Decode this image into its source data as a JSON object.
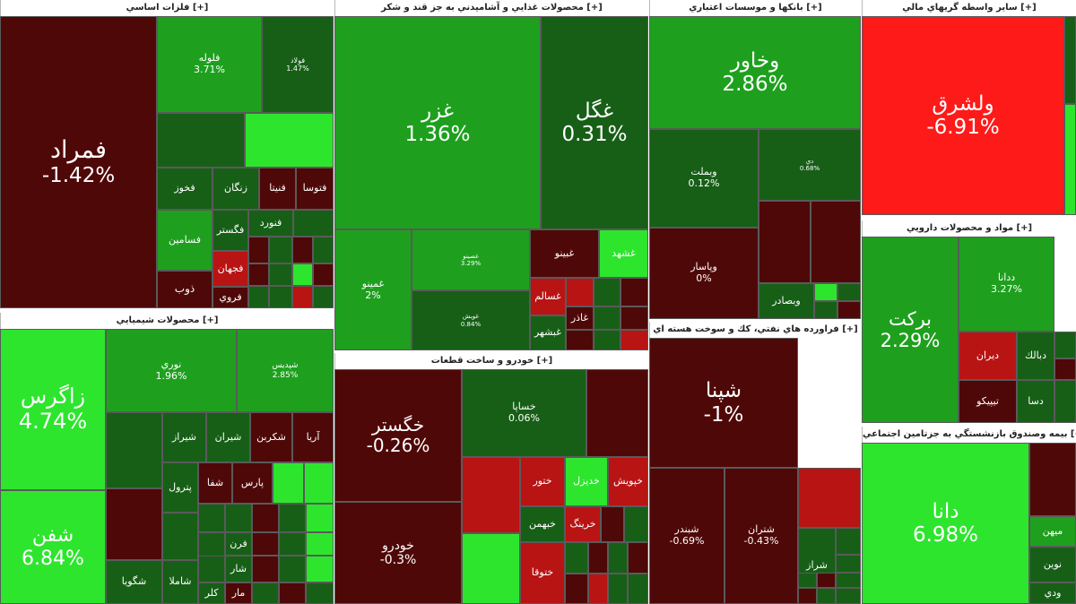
{
  "colors": {
    "pos_strong": "#2ee52e",
    "pos_mid": "#1ea01e",
    "pos_dark": "#175f17",
    "neg_strong": "#ff1a1a",
    "neg_mid": "#b81414",
    "neg_dark": "#4f0808"
  },
  "chart_data": {
    "type": "treemap",
    "title": "",
    "sectors": [
      {
        "name": "فلزات اساسي [+]",
        "items": [
          {
            "symbol": "فمراد",
            "change": "-1.42%"
          },
          {
            "symbol": "فلوله",
            "change": "3.71%"
          },
          {
            "symbol": "فولاد",
            "change": "1.47%"
          },
          {
            "symbol": "فخوز",
            "change": ""
          },
          {
            "symbol": "زنگان",
            "change": ""
          },
          {
            "symbol": "فنيتا",
            "change": ""
          },
          {
            "symbol": "فتوسا",
            "change": ""
          },
          {
            "symbol": "فسامين",
            "change": ""
          },
          {
            "symbol": "فگستر",
            "change": ""
          },
          {
            "symbol": "فنورد",
            "change": ""
          },
          {
            "symbol": "فجهان",
            "change": ""
          },
          {
            "symbol": "ذوب",
            "change": ""
          },
          {
            "symbol": "فروي",
            "change": ""
          }
        ]
      },
      {
        "name": "محصولات غذايي و آشاميدني به جز قند و شكر [+]",
        "items": [
          {
            "symbol": "غزر",
            "change": "1.36%"
          },
          {
            "symbol": "غگل",
            "change": "0.31%"
          },
          {
            "symbol": "غمينو",
            "change": "2%"
          },
          {
            "symbol": "غصينو",
            "change": "3.29%"
          },
          {
            "symbol": "غويش",
            "change": "0.84%"
          },
          {
            "symbol": "غبينو",
            "change": ""
          },
          {
            "symbol": "غشهد",
            "change": ""
          },
          {
            "symbol": "غسالم",
            "change": ""
          },
          {
            "symbol": "غاذر",
            "change": ""
          },
          {
            "symbol": "غبشهر",
            "change": ""
          }
        ]
      },
      {
        "name": "بانكها و موسسات اعتباري [+]",
        "items": [
          {
            "symbol": "وخاور",
            "change": "2.86%"
          },
          {
            "symbol": "وبملت",
            "change": "0.12%"
          },
          {
            "symbol": "دي",
            "change": "0.68%"
          },
          {
            "symbol": "وپاسار",
            "change": "0%"
          },
          {
            "symbol": "وبصادر",
            "change": ""
          }
        ]
      },
      {
        "name": "ساير واسطه گريهاي مالي [+]",
        "items": [
          {
            "symbol": "ولشرق",
            "change": "-6.91%"
          }
        ]
      },
      {
        "name": "مواد و محصولات دارويي [+]",
        "items": [
          {
            "symbol": "بركت",
            "change": "2.29%"
          },
          {
            "symbol": "ددانا",
            "change": "3.27%"
          },
          {
            "symbol": "ديران",
            "change": ""
          },
          {
            "symbol": "دبالك",
            "change": ""
          },
          {
            "symbol": "تيپيكو",
            "change": ""
          },
          {
            "symbol": "دسا",
            "change": ""
          }
        ]
      },
      {
        "name": "محصولات شيميايي [+]",
        "items": [
          {
            "symbol": "زاگرس",
            "change": "4.74%"
          },
          {
            "symbol": "شفن",
            "change": "6.84%"
          },
          {
            "symbol": "نوري",
            "change": "1.96%"
          },
          {
            "symbol": "شپديس",
            "change": "2.85%"
          },
          {
            "symbol": "آريا",
            "change": ""
          },
          {
            "symbol": "شكربن",
            "change": ""
          },
          {
            "symbol": "شيران",
            "change": ""
          },
          {
            "symbol": "شيراز",
            "change": ""
          },
          {
            "symbol": "پترول",
            "change": ""
          },
          {
            "symbol": "پارس",
            "change": ""
          },
          {
            "symbol": "شفا",
            "change": ""
          },
          {
            "symbol": "شگويا",
            "change": ""
          },
          {
            "symbol": "شاملا",
            "change": ""
          },
          {
            "symbol": "كلر",
            "change": ""
          },
          {
            "symbol": "فرن",
            "change": ""
          },
          {
            "symbol": "شار",
            "change": ""
          },
          {
            "symbol": "مار",
            "change": ""
          }
        ]
      },
      {
        "name": "خودرو و ساخت قطعات [+]",
        "items": [
          {
            "symbol": "خگستر",
            "change": "-0.26%"
          },
          {
            "symbol": "خودرو",
            "change": "-0.3%"
          },
          {
            "symbol": "خساپا",
            "change": "0.06%"
          },
          {
            "symbol": "ختور",
            "change": ""
          },
          {
            "symbol": "خديزل",
            "change": ""
          },
          {
            "symbol": "خپويش",
            "change": ""
          },
          {
            "symbol": "خبهمن",
            "change": ""
          },
          {
            "symbol": "خرينگ",
            "change": ""
          },
          {
            "symbol": "ختوقا",
            "change": ""
          }
        ]
      },
      {
        "name": "فراورده هاي نفتي، كك و سوخت هسته اي [+]",
        "items": [
          {
            "symbol": "شپنا",
            "change": "-1%"
          },
          {
            "symbol": "شبندر",
            "change": "-0.69%"
          },
          {
            "symbol": "شتران",
            "change": "-0.43%"
          },
          {
            "symbol": "شراز",
            "change": ""
          }
        ]
      },
      {
        "name": "بيمه وصندوق بازنشستگي به جزتامين اجتماعي [+]",
        "items": [
          {
            "symbol": "دانا",
            "change": "6.98%"
          },
          {
            "symbol": "ميهن",
            "change": ""
          },
          {
            "symbol": "نوين",
            "change": ""
          },
          {
            "symbol": "ودي",
            "change": ""
          }
        ]
      }
    ]
  }
}
